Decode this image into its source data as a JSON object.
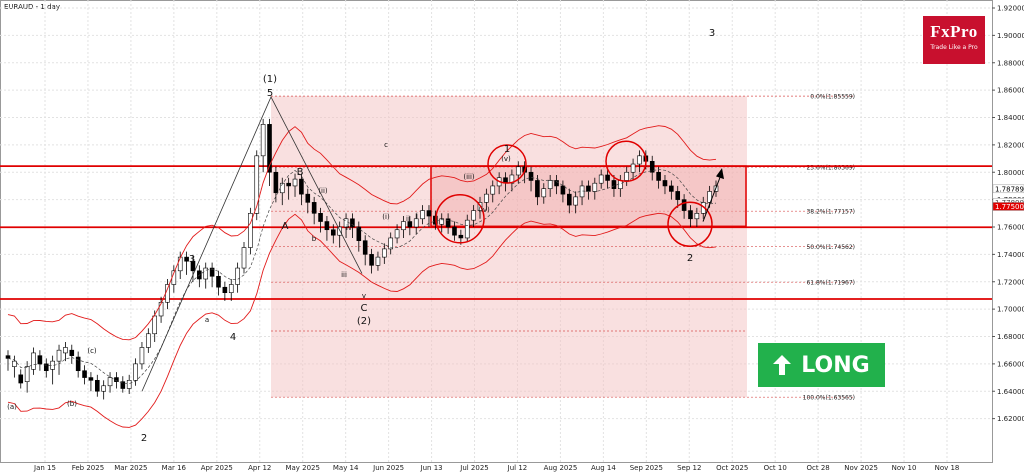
{
  "chart_data": {
    "type": "candlestick",
    "title": "EURAUD - 1 day",
    "ylim": [
      1.6,
      1.92
    ],
    "y_ticks": [
      "1.62000",
      "1.64000",
      "1.66000",
      "1.68000",
      "1.70000",
      "1.72000",
      "1.74000",
      "1.76000",
      "1.78000",
      "1.80000",
      "1.82000",
      "1.84000",
      "1.86000",
      "1.88000",
      "1.90000",
      "1.92000"
    ],
    "x_ticks": [
      "Jan 15",
      "Feb 2025",
      "Mar 2025",
      "Mar 16",
      "Apr 2025",
      "Apr 12",
      "May 2025",
      "May 14",
      "Jun 2025",
      "Jun 13",
      "Jul 2025",
      "Jul 12",
      "Aug 2025",
      "Aug 14",
      "Sep 2025",
      "Sep 12",
      "Oct 2025",
      "Oct 10",
      "Oct 28",
      "Nov 2025",
      "Nov 10",
      "Nov 18"
    ],
    "price_markers": [
      "1.78789",
      "1.77800",
      "1.77500"
    ],
    "horizontal_levels": [
      1.8045,
      1.7598,
      1.7074
    ],
    "fibonacci": [
      {
        "label": "0.0%(1.85559)",
        "value": 1.85559
      },
      {
        "label": "23.6%(1.80369)",
        "value": 1.80369
      },
      {
        "label": "38.2%(1.77157)",
        "value": 1.77157
      },
      {
        "label": "50.0%(1.74562)",
        "value": 1.74562
      },
      {
        "label": "61.8%(1.71967)",
        "value": 1.71967
      },
      {
        "label": "100.0%(1.63565)",
        "value": 1.63565
      }
    ],
    "candles": [
      [
        1.666,
        1.664,
        1.655
      ],
      [
        1.658,
        1.662,
        1.65
      ],
      [
        1.652,
        1.646,
        1.642
      ],
      [
        1.647,
        1.658,
        1.639
      ],
      [
        1.656,
        1.668,
        1.652
      ],
      [
        1.666,
        1.66,
        1.655
      ],
      [
        1.66,
        1.655,
        1.65
      ],
      [
        1.656,
        1.662,
        1.645
      ],
      [
        1.662,
        1.67,
        1.652
      ],
      [
        1.668,
        1.672,
        1.662
      ],
      [
        1.67,
        1.666,
        1.66
      ],
      [
        1.665,
        1.655,
        1.65
      ],
      [
        1.655,
        1.65,
        1.645
      ],
      [
        1.65,
        1.648,
        1.64
      ],
      [
        1.648,
        1.64,
        1.636
      ],
      [
        1.64,
        1.644,
        1.634
      ],
      [
        1.644,
        1.65,
        1.639
      ],
      [
        1.65,
        1.647,
        1.642
      ],
      [
        1.647,
        1.642,
        1.639
      ],
      [
        1.642,
        1.648,
        1.638
      ],
      [
        1.648,
        1.66,
        1.644
      ],
      [
        1.66,
        1.672,
        1.656
      ],
      [
        1.672,
        1.682,
        1.668
      ],
      [
        1.682,
        1.695,
        1.676
      ],
      [
        1.695,
        1.705,
        1.69
      ],
      [
        1.705,
        1.718,
        1.7
      ],
      [
        1.718,
        1.728,
        1.712
      ],
      [
        1.728,
        1.738,
        1.722
      ],
      [
        1.738,
        1.735,
        1.725
      ],
      [
        1.735,
        1.728,
        1.72
      ],
      [
        1.728,
        1.722,
        1.716
      ],
      [
        1.722,
        1.73,
        1.715
      ],
      [
        1.73,
        1.724,
        1.716
      ],
      [
        1.724,
        1.716,
        1.71
      ],
      [
        1.716,
        1.712,
        1.706
      ],
      [
        1.712,
        1.718,
        1.706
      ],
      [
        1.718,
        1.73,
        1.712
      ],
      [
        1.73,
        1.745,
        1.726
      ],
      [
        1.745,
        1.77,
        1.74
      ],
      [
        1.77,
        1.812,
        1.765
      ],
      [
        1.812,
        1.835,
        1.8
      ],
      [
        1.835,
        1.8,
        1.79
      ],
      [
        1.8,
        1.785,
        1.778
      ],
      [
        1.785,
        1.792,
        1.776
      ],
      [
        1.792,
        1.79,
        1.78
      ],
      [
        1.79,
        1.795,
        1.782
      ],
      [
        1.795,
        1.784,
        1.776
      ],
      [
        1.784,
        1.778,
        1.77
      ],
      [
        1.778,
        1.77,
        1.762
      ],
      [
        1.77,
        1.764,
        1.756
      ],
      [
        1.764,
        1.758,
        1.75
      ],
      [
        1.758,
        1.754,
        1.748
      ],
      [
        1.754,
        1.76,
        1.745
      ],
      [
        1.76,
        1.766,
        1.752
      ],
      [
        1.766,
        1.76,
        1.752
      ],
      [
        1.76,
        1.75,
        1.742
      ],
      [
        1.75,
        1.74,
        1.732
      ],
      [
        1.74,
        1.732,
        1.726
      ],
      [
        1.732,
        1.738,
        1.728
      ],
      [
        1.738,
        1.744,
        1.733
      ],
      [
        1.744,
        1.752,
        1.74
      ],
      [
        1.752,
        1.758,
        1.748
      ],
      [
        1.758,
        1.764,
        1.752
      ],
      [
        1.764,
        1.76,
        1.754
      ],
      [
        1.76,
        1.766,
        1.755
      ],
      [
        1.766,
        1.772,
        1.762
      ],
      [
        1.772,
        1.768,
        1.76
      ],
      [
        1.768,
        1.762,
        1.758
      ],
      [
        1.762,
        1.766,
        1.756
      ],
      [
        1.766,
        1.76,
        1.755
      ],
      [
        1.76,
        1.754,
        1.75
      ],
      [
        1.754,
        1.752,
        1.747
      ],
      [
        1.752,
        1.765,
        1.749
      ],
      [
        1.765,
        1.772,
        1.76
      ],
      [
        1.772,
        1.778,
        1.766
      ],
      [
        1.778,
        1.784,
        1.772
      ],
      [
        1.784,
        1.79,
        1.778
      ],
      [
        1.79,
        1.796,
        1.784
      ],
      [
        1.796,
        1.792,
        1.786
      ],
      [
        1.792,
        1.798,
        1.786
      ],
      [
        1.798,
        1.804,
        1.792
      ],
      [
        1.804,
        1.8,
        1.792
      ],
      [
        1.8,
        1.794,
        1.786
      ],
      [
        1.794,
        1.782,
        1.776
      ],
      [
        1.782,
        1.788,
        1.777
      ],
      [
        1.788,
        1.794,
        1.782
      ],
      [
        1.794,
        1.79,
        1.784
      ],
      [
        1.79,
        1.784,
        1.778
      ],
      [
        1.784,
        1.776,
        1.77
      ],
      [
        1.776,
        1.782,
        1.77
      ],
      [
        1.782,
        1.79,
        1.776
      ],
      [
        1.79,
        1.786,
        1.78
      ],
      [
        1.786,
        1.792,
        1.78
      ],
      [
        1.792,
        1.798,
        1.788
      ],
      [
        1.798,
        1.794,
        1.788
      ],
      [
        1.794,
        1.788,
        1.782
      ],
      [
        1.788,
        1.794,
        1.782
      ],
      [
        1.794,
        1.8,
        1.79
      ],
      [
        1.8,
        1.806,
        1.794
      ],
      [
        1.806,
        1.812,
        1.8
      ],
      [
        1.812,
        1.808,
        1.802
      ],
      [
        1.808,
        1.8,
        1.794
      ],
      [
        1.8,
        1.794,
        1.788
      ],
      [
        1.794,
        1.79,
        1.784
      ],
      [
        1.79,
        1.786,
        1.78
      ],
      [
        1.786,
        1.78,
        1.774
      ],
      [
        1.78,
        1.772,
        1.766
      ],
      [
        1.772,
        1.766,
        1.76
      ],
      [
        1.766,
        1.77,
        1.76
      ],
      [
        1.77,
        1.778,
        1.766
      ],
      [
        1.778,
        1.786,
        1.774
      ],
      [
        1.786,
        1.79,
        1.782
      ]
    ],
    "wave_labels": [
      "(1)",
      "5",
      "3",
      "4",
      "2",
      "A",
      "B",
      "C",
      "(2)",
      "1",
      "2",
      "3",
      "(a)",
      "(b)",
      "(c)",
      "a",
      "b",
      "c",
      "(i)",
      "(ii)",
      "(iii)",
      "(iv)",
      "(v)",
      "i",
      "ii",
      "iii",
      "iv",
      "v"
    ],
    "panel_corner_label": "3"
  },
  "logo": {
    "brand": "FxPro",
    "tagline": "Trade Like a Pro"
  },
  "badge": {
    "label": "LONG",
    "arrow_icon": "up-arrow-icon"
  },
  "colors": {
    "resistance_line": "#e00000",
    "rect_fill": "#f3c2c2",
    "box_fill": "#f0a8a8",
    "bollinger": "#e21b1b",
    "logo_bg": "#c8102e",
    "badge_bg": "#22b14c"
  }
}
